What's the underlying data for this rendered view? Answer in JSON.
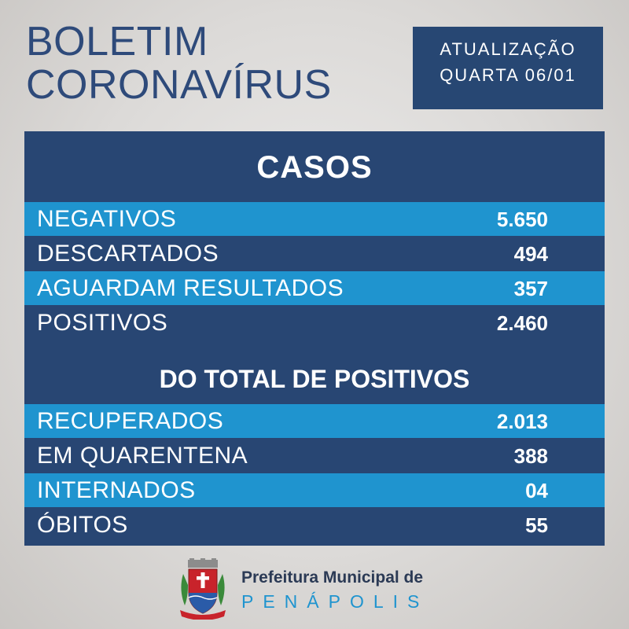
{
  "header": {
    "title_line1": "BOLETIM",
    "title_line2": "CORONAVÍRUS",
    "update_line1": "ATUALIZAÇÃO",
    "update_line2": "QUARTA 06/01"
  },
  "casos": {
    "title": "CASOS",
    "rows": [
      {
        "label": "NEGATIVOS",
        "value": "5.650"
      },
      {
        "label": "DESCARTADOS",
        "value": "494"
      },
      {
        "label": "AGUARDAM RESULTADOS",
        "value": "357"
      },
      {
        "label": "POSITIVOS",
        "value": "2.460"
      }
    ]
  },
  "positivos": {
    "title": "DO TOTAL DE POSITIVOS",
    "rows": [
      {
        "label": "RECUPERADOS",
        "value": "2.013"
      },
      {
        "label": "EM QUARENTENA",
        "value": "388"
      },
      {
        "label": "INTERNADOS",
        "value": "04"
      },
      {
        "label": "ÓBITOS",
        "value": "55"
      }
    ]
  },
  "footer": {
    "line1": "Prefeitura Municipal de",
    "line2": "PENÁPOLIS"
  },
  "colors": {
    "dark_blue": "#284673",
    "light_blue": "#1f94cf",
    "title_blue": "#2e4a7a"
  }
}
